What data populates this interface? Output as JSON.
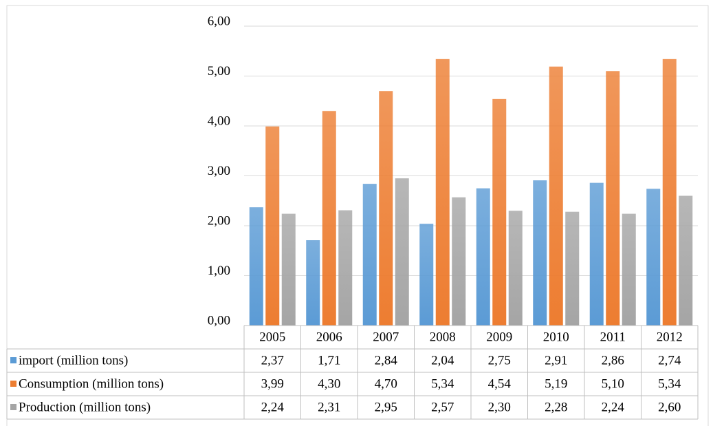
{
  "chart_data": {
    "type": "bar",
    "categories": [
      "2005",
      "2006",
      "2007",
      "2008",
      "2009",
      "2010",
      "2011",
      "2012"
    ],
    "series": [
      {
        "name": "import (million tons)",
        "color": "#5b9bd5",
        "values": [
          2.37,
          1.71,
          2.84,
          2.04,
          2.75,
          2.91,
          2.86,
          2.74
        ],
        "value_labels": [
          "2,37",
          "1,71",
          "2,84",
          "2,04",
          "2,75",
          "2,91",
          "2,86",
          "2,74"
        ]
      },
      {
        "name": "Consumption (million tons)",
        "color": "#ed7d31",
        "values": [
          3.99,
          4.3,
          4.7,
          5.34,
          4.54,
          5.19,
          5.1,
          5.34
        ],
        "value_labels": [
          "3,99",
          "4,30",
          "4,70",
          "5,34",
          "4,54",
          "5,19",
          "5,10",
          "5,34"
        ]
      },
      {
        "name": "Production (million tons)",
        "color": "#a5a5a5",
        "values": [
          2.24,
          2.31,
          2.95,
          2.57,
          2.3,
          2.28,
          2.24,
          2.6
        ],
        "value_labels": [
          "2,24",
          "2,31",
          "2,95",
          "2,57",
          "2,30",
          "2,28",
          "2,24",
          "2,60"
        ]
      }
    ],
    "ylim": [
      0,
      6
    ],
    "yticks": [
      {
        "value": 0,
        "label": "0,00"
      },
      {
        "value": 1,
        "label": "1,00"
      },
      {
        "value": 2,
        "label": "2,00"
      },
      {
        "value": 3,
        "label": "3,00"
      },
      {
        "value": 4,
        "label": "4,00"
      },
      {
        "value": 5,
        "label": "5,00"
      },
      {
        "value": 6,
        "label": "6,00"
      }
    ],
    "grid": true
  }
}
